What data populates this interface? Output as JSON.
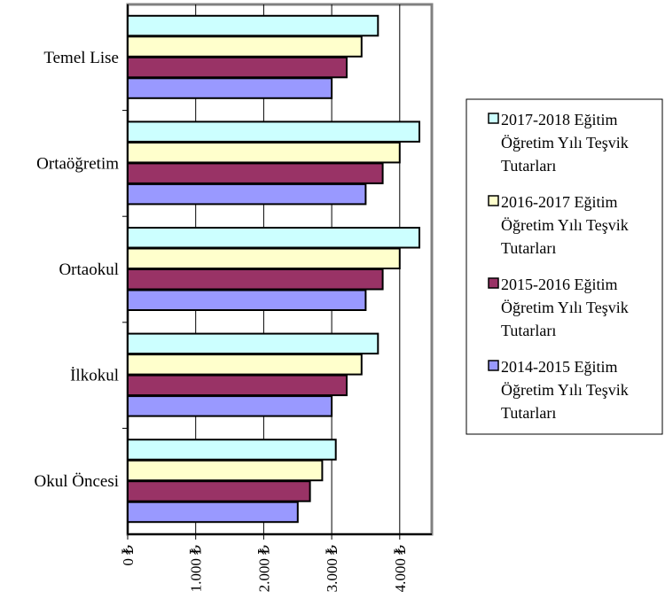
{
  "chart_data": {
    "type": "bar",
    "orientation": "horizontal",
    "categories": [
      "Temel Lise",
      "Ortaöğretim",
      "Ortaokul",
      "İlkokul",
      "Okul Öncesi"
    ],
    "series": [
      {
        "name": "2017-2018 Eğitim Öğretim Yılı Teşvik Tutarları",
        "legend_lines": [
          "2017-2018 Eğitim",
          "Öğretim Yılı Teşvik",
          "Tutarları"
        ],
        "color": "#ccffff",
        "values": [
          3680,
          4290,
          4290,
          3680,
          3060
        ]
      },
      {
        "name": "2016-2017 Eğitim Öğretim Yılı Teşvik Tutarları",
        "legend_lines": [
          "2016-2017 Eğitim",
          "Öğretim Yılı Teşvik",
          "Tutarları"
        ],
        "color": "#ffffcc",
        "values": [
          3440,
          4000,
          4000,
          3440,
          2860
        ]
      },
      {
        "name": "2015-2016 Eğitim Öğretim Yılı Teşvik Tutarları",
        "legend_lines": [
          "2015-2016 Eğitim",
          "Öğretim Yılı Teşvik",
          "Tutarları"
        ],
        "color": "#993366",
        "values": [
          3220,
          3750,
          3750,
          3220,
          2680
        ]
      },
      {
        "name": "2014-2015 Eğitim Öğretim Yılı Teşvik Tutarları",
        "legend_lines": [
          "2014-2015 Eğitim",
          "Öğretim Yılı Teşvik",
          "Tutarları"
        ],
        "color": "#9999ff",
        "values": [
          3000,
          3500,
          3500,
          3000,
          2500
        ]
      }
    ],
    "x_ticks": [
      {
        "value": 0,
        "label": "0 ₺"
      },
      {
        "value": 1000,
        "label": "1.000 ₺"
      },
      {
        "value": 2000,
        "label": "2.000 ₺"
      },
      {
        "value": 3000,
        "label": "3.000 ₺"
      },
      {
        "value": 4000,
        "label": "4.000 ₺"
      }
    ],
    "xlim": [
      0,
      4500
    ],
    "grid": "vertical-major",
    "legend_position": "right"
  }
}
